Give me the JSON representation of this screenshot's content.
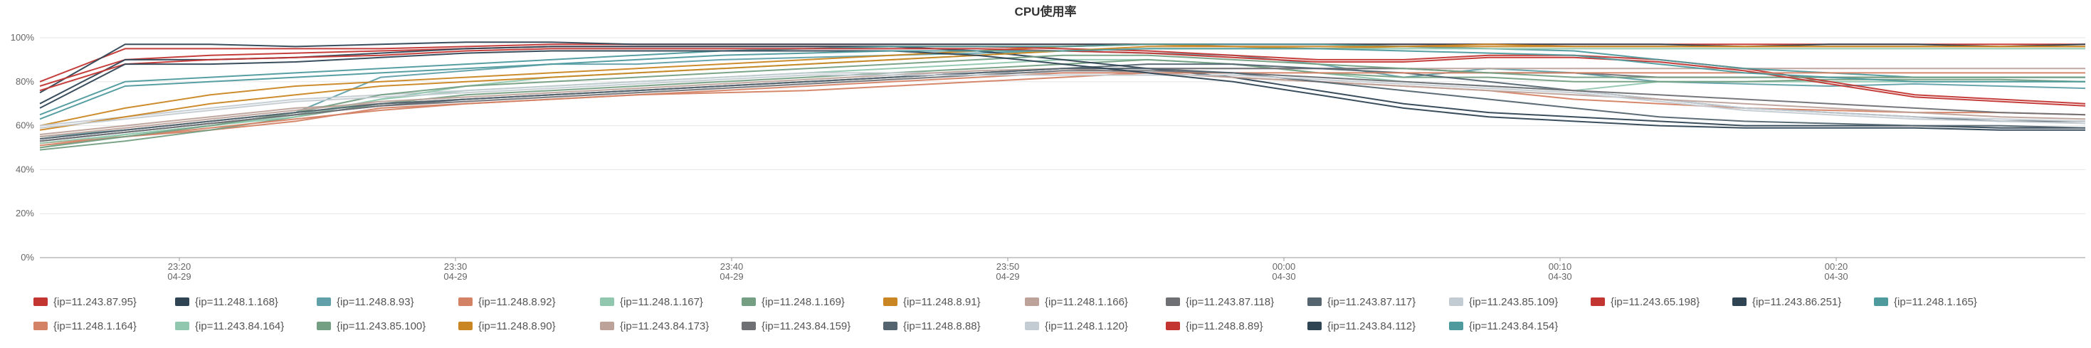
{
  "chart_data": {
    "type": "line",
    "title": "CPU使用率",
    "xlabel": "",
    "ylabel": "",
    "ylim": [
      0,
      100
    ],
    "y_unit": "%",
    "y_ticks": [
      "0%",
      "20%",
      "40%",
      "60%",
      "80%",
      "100%"
    ],
    "x_ticks": [
      {
        "time": "23:20",
        "date": "04-29"
      },
      {
        "time": "23:30",
        "date": "04-29"
      },
      {
        "time": "23:40",
        "date": "04-29"
      },
      {
        "time": "23:50",
        "date": "04-29"
      },
      {
        "time": "00:00",
        "date": "04-30"
      },
      {
        "time": "00:10",
        "date": "04-30"
      },
      {
        "time": "00:20",
        "date": "04-30"
      }
    ],
    "x_range": [
      "04-29 23:16",
      "04-30 00:28"
    ],
    "grid": true,
    "legend_position": "bottom",
    "series": [
      {
        "name": "{ip=11.243.87.95}",
        "color": "#c23531",
        "values": [
          80,
          95,
          95,
          95,
          95,
          96,
          97,
          97,
          97,
          97,
          97,
          97,
          97,
          97,
          97,
          97,
          97,
          97,
          97,
          97,
          97,
          97,
          97,
          97,
          97
        ]
      },
      {
        "name": "{ip=11.248.1.168}",
        "color": "#2f4554",
        "values": [
          75,
          97,
          97,
          96,
          97,
          98,
          98,
          97,
          97,
          97,
          97,
          97,
          97,
          97,
          97,
          97,
          97,
          97,
          97,
          97,
          96,
          97,
          97,
          96,
          97
        ]
      },
      {
        "name": "{ip=11.248.8.93}",
        "color": "#61a0a8",
        "values": [
          55,
          58,
          62,
          66,
          82,
          85,
          88,
          88,
          90,
          91,
          92,
          93,
          94,
          93,
          92,
          88,
          82,
          86,
          84,
          80,
          79,
          78,
          79,
          78,
          77
        ]
      },
      {
        "name": "{ip=11.248.8.92}",
        "color": "#d48265",
        "values": [
          52,
          55,
          58,
          62,
          68,
          70,
          72,
          74,
          75,
          76,
          78,
          80,
          82,
          84,
          82,
          80,
          78,
          76,
          72,
          70,
          68,
          67,
          66,
          66,
          65
        ]
      },
      {
        "name": "{ip=11.248.1.167}",
        "color": "#91c7ae",
        "values": [
          50,
          56,
          60,
          65,
          72,
          76,
          78,
          80,
          82,
          84,
          86,
          88,
          90,
          90,
          88,
          84,
          80,
          78,
          76,
          80,
          80,
          80,
          80,
          80,
          80
        ]
      },
      {
        "name": "{ip=11.248.1.169}",
        "color": "#749f83",
        "values": [
          49,
          53,
          58,
          64,
          70,
          74,
          76,
          78,
          80,
          82,
          84,
          86,
          88,
          90,
          88,
          84,
          82,
          82,
          80,
          80,
          80,
          81,
          81,
          81,
          80
        ]
      },
      {
        "name": "{ip=11.248.8.91}",
        "color": "#ca8622",
        "values": [
          60,
          68,
          74,
          78,
          80,
          82,
          84,
          86,
          88,
          90,
          92,
          94,
          96,
          97,
          96,
          95,
          96,
          97,
          96,
          96,
          96,
          96,
          96,
          96,
          96
        ]
      },
      {
        "name": "{ip=11.248.1.166}",
        "color": "#bda29a",
        "values": [
          56,
          60,
          64,
          68,
          70,
          72,
          74,
          76,
          78,
          80,
          82,
          84,
          86,
          86,
          86,
          86,
          86,
          86,
          86,
          86,
          86,
          86,
          86,
          86,
          86
        ]
      },
      {
        "name": "{ip=11.243.87.118}",
        "color": "#6e7074",
        "values": [
          54,
          58,
          62,
          66,
          70,
          72,
          74,
          76,
          78,
          80,
          82,
          84,
          86,
          86,
          86,
          86,
          86,
          84,
          84,
          82,
          82,
          82,
          82,
          82,
          82
        ]
      },
      {
        "name": "{ip=11.243.87.117}",
        "color": "#546570",
        "values": [
          53,
          57,
          61,
          65,
          69,
          72,
          74,
          76,
          78,
          80,
          82,
          84,
          86,
          88,
          88,
          86,
          84,
          80,
          76,
          72,
          68,
          66,
          64,
          62,
          62
        ]
      },
      {
        "name": "{ip=11.243.85.109}",
        "color": "#c4ccd3",
        "values": [
          60,
          64,
          68,
          72,
          74,
          76,
          78,
          80,
          82,
          84,
          84,
          84,
          84,
          84,
          84,
          82,
          80,
          78,
          76,
          72,
          68,
          66,
          64,
          63,
          62
        ]
      },
      {
        "name": "{ip=11.243.65.198}",
        "color": "#c23531",
        "values": [
          78,
          90,
          92,
          93,
          94,
          95,
          96,
          96,
          96,
          96,
          96,
          96,
          95,
          94,
          92,
          90,
          90,
          92,
          92,
          90,
          86,
          80,
          74,
          72,
          70
        ]
      },
      {
        "name": "{ip=11.243.86.251}",
        "color": "#2f4554",
        "values": [
          70,
          90,
          90,
          91,
          93,
          95,
          96,
          96,
          96,
          96,
          96,
          94,
          90,
          86,
          82,
          76,
          70,
          66,
          64,
          62,
          60,
          60,
          60,
          59,
          59
        ]
      },
      {
        "name": "{ip=11.248.1.165}",
        "color": "#4e9a9d",
        "values": [
          65,
          80,
          82,
          84,
          86,
          88,
          90,
          92,
          94,
          95,
          96,
          96,
          96,
          97,
          97,
          97,
          96,
          95,
          94,
          90,
          86,
          84,
          82,
          82,
          82
        ]
      },
      {
        "name": "{ip=11.248.1.164}",
        "color": "#d48265",
        "values": [
          51,
          55,
          59,
          63,
          67,
          70,
          72,
          74,
          76,
          78,
          80,
          82,
          84,
          84,
          84,
          84,
          84,
          84,
          84,
          84,
          84,
          84,
          84,
          84,
          84
        ]
      },
      {
        "name": "{ip=11.243.84.164}",
        "color": "#91c7ae",
        "values": [
          52,
          56,
          60,
          64,
          72,
          78,
          82,
          84,
          86,
          88,
          90,
          92,
          94,
          95,
          95,
          95,
          95,
          95,
          95,
          95,
          95,
          95,
          95,
          95,
          95
        ]
      },
      {
        "name": "{ip=11.243.85.100}",
        "color": "#749f83",
        "values": [
          50,
          55,
          60,
          66,
          74,
          78,
          80,
          82,
          84,
          86,
          88,
          90,
          92,
          92,
          90,
          88,
          86,
          84,
          82,
          82,
          82,
          82,
          82,
          82,
          82
        ]
      },
      {
        "name": "{ip=11.248.8.90}",
        "color": "#ca8622",
        "values": [
          58,
          64,
          70,
          74,
          78,
          80,
          82,
          84,
          86,
          88,
          90,
          92,
          94,
          96,
          96,
          96,
          96,
          96,
          96,
          96,
          96,
          96,
          96,
          96,
          96
        ]
      },
      {
        "name": "{ip=11.243.84.173}",
        "color": "#bda29a",
        "values": [
          55,
          59,
          63,
          67,
          71,
          73,
          75,
          77,
          79,
          81,
          83,
          85,
          86,
          84,
          82,
          80,
          78,
          76,
          74,
          72,
          70,
          68,
          66,
          64,
          63
        ]
      },
      {
        "name": "{ip=11.243.84.159}",
        "color": "#6e7074",
        "values": [
          53,
          57,
          61,
          65,
          69,
          71,
          73,
          75,
          77,
          79,
          81,
          83,
          85,
          85,
          84,
          82,
          80,
          78,
          76,
          74,
          72,
          70,
          68,
          66,
          65
        ]
      },
      {
        "name": "{ip=11.248.8.88}",
        "color": "#546570",
        "values": [
          54,
          58,
          62,
          66,
          70,
          72,
          74,
          76,
          78,
          80,
          82,
          84,
          86,
          86,
          84,
          80,
          76,
          72,
          68,
          64,
          62,
          61,
          60,
          60,
          59
        ]
      },
      {
        "name": "{ip=11.248.1.120}",
        "color": "#c4ccd3",
        "values": [
          59,
          63,
          67,
          71,
          73,
          75,
          77,
          79,
          81,
          83,
          83,
          83,
          83,
          83,
          83,
          81,
          79,
          77,
          75,
          71,
          67,
          65,
          63,
          62,
          61
        ]
      },
      {
        "name": "{ip=11.248.8.89}",
        "color": "#c23531",
        "values": [
          76,
          88,
          90,
          91,
          92,
          94,
          95,
          95,
          95,
          95,
          95,
          95,
          94,
          93,
          91,
          89,
          89,
          91,
          91,
          89,
          85,
          79,
          73,
          71,
          69
        ]
      },
      {
        "name": "{ip=11.243.84.112}",
        "color": "#2f4554",
        "values": [
          68,
          88,
          88,
          89,
          91,
          93,
          94,
          94,
          94,
          94,
          94,
          92,
          88,
          84,
          80,
          74,
          68,
          64,
          62,
          60,
          59,
          59,
          59,
          58,
          58
        ]
      },
      {
        "name": "{ip=11.243.84.154}",
        "color": "#4e9a9d",
        "values": [
          63,
          78,
          80,
          82,
          84,
          86,
          88,
          90,
          92,
          93,
          94,
          94,
          94,
          95,
          95,
          95,
          94,
          93,
          92,
          88,
          84,
          82,
          80,
          80,
          80
        ]
      }
    ]
  }
}
